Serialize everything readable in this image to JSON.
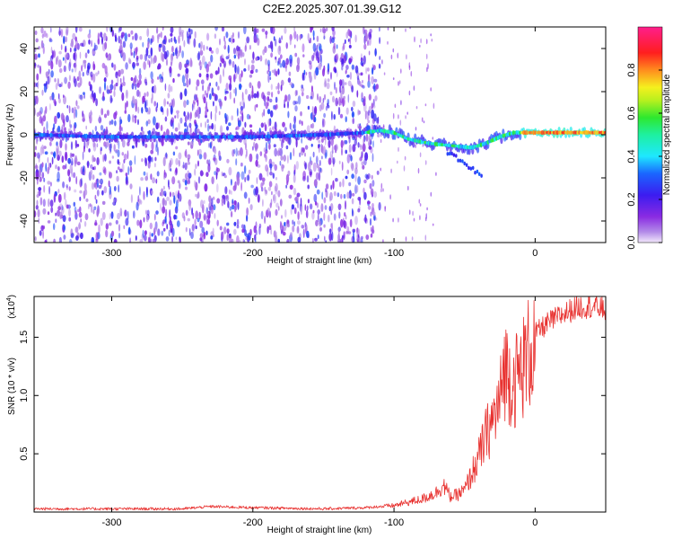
{
  "title": "C2E2.2025.307.01.39.G12",
  "chart_data": [
    {
      "type": "heatmap",
      "xlabel": "Height of straight line (km)",
      "ylabel": "Frequency (Hz)",
      "xlim": [
        -355,
        50
      ],
      "ylim": [
        -50,
        50
      ],
      "x_ticks": [
        -300,
        -200,
        -100,
        0
      ],
      "x_tick_labels": [
        "-300",
        "-200",
        "-100",
        "0"
      ],
      "y_ticks": [
        -40,
        -20,
        0,
        20,
        40
      ],
      "y_tick_labels": [
        "-40",
        "-20",
        "0",
        "20",
        "40"
      ],
      "colorbar": {
        "label": "Normalized spectral amplitude",
        "range": [
          0,
          1
        ],
        "ticks": [
          0,
          0.2,
          0.4,
          0.6,
          0.8
        ],
        "tick_labels": [
          "0.0",
          "0.2",
          "0.4",
          "0.6",
          "0.8"
        ],
        "colormap": "rainbow (purple-blue-cyan-green-yellow-red-magenta)"
      },
      "ridge": [
        {
          "x": -355,
          "y": 0
        },
        {
          "x": -300,
          "y": -1
        },
        {
          "x": -250,
          "y": -1
        },
        {
          "x": -200,
          "y": -1
        },
        {
          "x": -150,
          "y": 0
        },
        {
          "x": -120,
          "y": 1
        },
        {
          "x": -110,
          "y": 2
        },
        {
          "x": -100,
          "y": 1
        },
        {
          "x": -90,
          "y": -2
        },
        {
          "x": -75,
          "y": -4
        },
        {
          "x": -60,
          "y": -5
        },
        {
          "x": -45,
          "y": -6
        },
        {
          "x": -35,
          "y": -4
        },
        {
          "x": -25,
          "y": -1
        },
        {
          "x": -15,
          "y": 1
        },
        {
          "x": 0,
          "y": 1
        },
        {
          "x": 20,
          "y": 1
        },
        {
          "x": 50,
          "y": 1
        }
      ],
      "noise_region_x": [
        -355,
        -120
      ]
    },
    {
      "type": "line",
      "xlabel": "Height of straight line (km)",
      "ylabel": "SNR (10 * v/v)",
      "y_multiplier_label": "(x10",
      "y_multiplier_exp": "4",
      "y_multiplier_close": ")",
      "xlim": [
        -355,
        50
      ],
      "ylim": [
        0,
        1.85
      ],
      "x_ticks": [
        -300,
        -200,
        -100,
        0
      ],
      "x_tick_labels": [
        "-300",
        "-200",
        "-100",
        "0"
      ],
      "y_ticks": [
        0.5,
        1.0,
        1.5
      ],
      "y_tick_labels": [
        "0.5",
        "1.0",
        "1.5"
      ],
      "color": "#e8312f",
      "series": [
        {
          "x": [
            -355,
            -300,
            -250,
            -230,
            -200,
            -150,
            -120,
            -100,
            -90,
            -80,
            -70,
            -65,
            -60,
            -55,
            -50,
            -45,
            -40,
            -35,
            -30,
            -25,
            -22,
            -20,
            -15,
            -10,
            -5,
            0,
            10,
            20,
            30,
            40,
            50
          ],
          "values": [
            0.03,
            0.03,
            0.03,
            0.05,
            0.04,
            0.03,
            0.04,
            0.06,
            0.09,
            0.12,
            0.18,
            0.25,
            0.14,
            0.16,
            0.2,
            0.35,
            0.5,
            0.7,
            0.85,
            1.0,
            1.35,
            1.3,
            1.2,
            1.3,
            1.45,
            1.55,
            1.65,
            1.72,
            1.78,
            1.79,
            1.76
          ]
        }
      ]
    }
  ]
}
